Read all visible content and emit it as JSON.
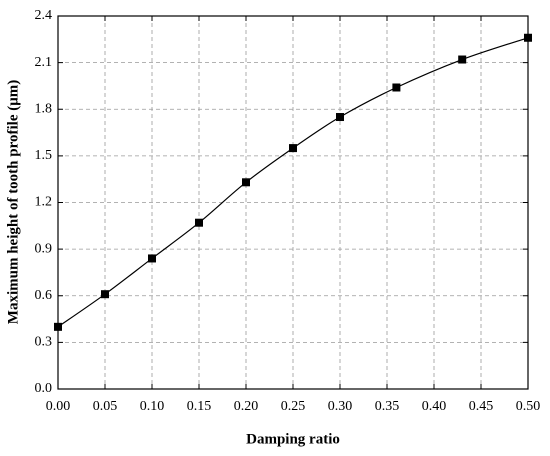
{
  "chart_data": {
    "type": "line",
    "x_label": "Damping ratio",
    "y_label": "Maximum height of tooth profile (μm)",
    "x": [
      0,
      0.05,
      0.1,
      0.15,
      0.2,
      0.25,
      0.3,
      0.36,
      0.43,
      0.5
    ],
    "series": [
      {
        "color": "#000000",
        "values": [
          0.4,
          0.61,
          0.84,
          1.07,
          1.33,
          1.55,
          1.75,
          1.94,
          2.12,
          2.26
        ]
      }
    ],
    "xlim": [
      0,
      0.5
    ],
    "xticks": [
      {
        "value": 0,
        "label": "0.00"
      },
      0.05,
      {
        "value": 0.1,
        "label": "0.10"
      },
      0.15,
      {
        "value": 0.2,
        "label": "0.20"
      },
      0.25,
      {
        "value": 0.3,
        "label": "0.30"
      },
      0.35,
      {
        "value": 0.4,
        "label": "0.40"
      },
      0.45,
      {
        "value": 0.5,
        "label": "0.50"
      }
    ],
    "ylim": [
      0,
      2.4
    ],
    "yticks": [
      {
        "value": 0,
        "label": "0.0"
      },
      0.3,
      0.6,
      0.9,
      1.2,
      1.5,
      1.8,
      2.1,
      2.4
    ],
    "grid": true
  }
}
